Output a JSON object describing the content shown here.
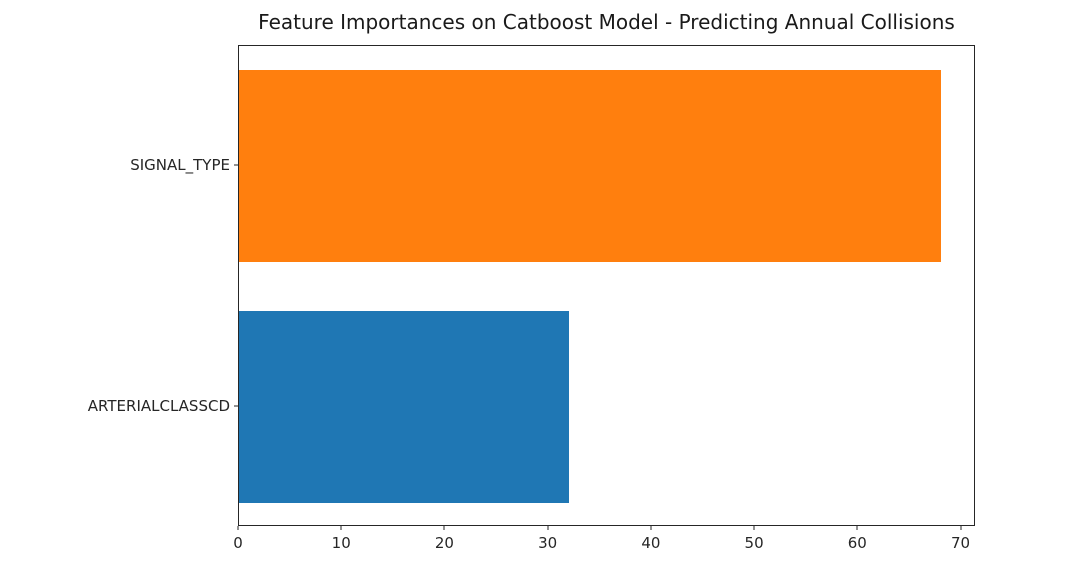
{
  "chart_data": {
    "type": "bar",
    "orientation": "horizontal",
    "title": "Feature Importances on Catboost Model - Predicting Annual Collisions",
    "categories": [
      "SIGNAL_TYPE",
      "ARTERIALCLASSCD"
    ],
    "series": [
      {
        "name": "feature_importance",
        "values": [
          68,
          32
        ]
      }
    ],
    "bar_colors": [
      "#ff7f0e",
      "#1f77b4"
    ],
    "xlabel": "",
    "ylabel": "",
    "xlim": [
      0,
      71.4
    ],
    "x_ticks": [
      0,
      10,
      20,
      30,
      40,
      50,
      60,
      70
    ],
    "grid": false,
    "legend_position": "none",
    "bar_height_fraction": 0.8
  },
  "style": {
    "spine_color": "#262626",
    "text_color": "#262626",
    "background": "#ffffff"
  }
}
